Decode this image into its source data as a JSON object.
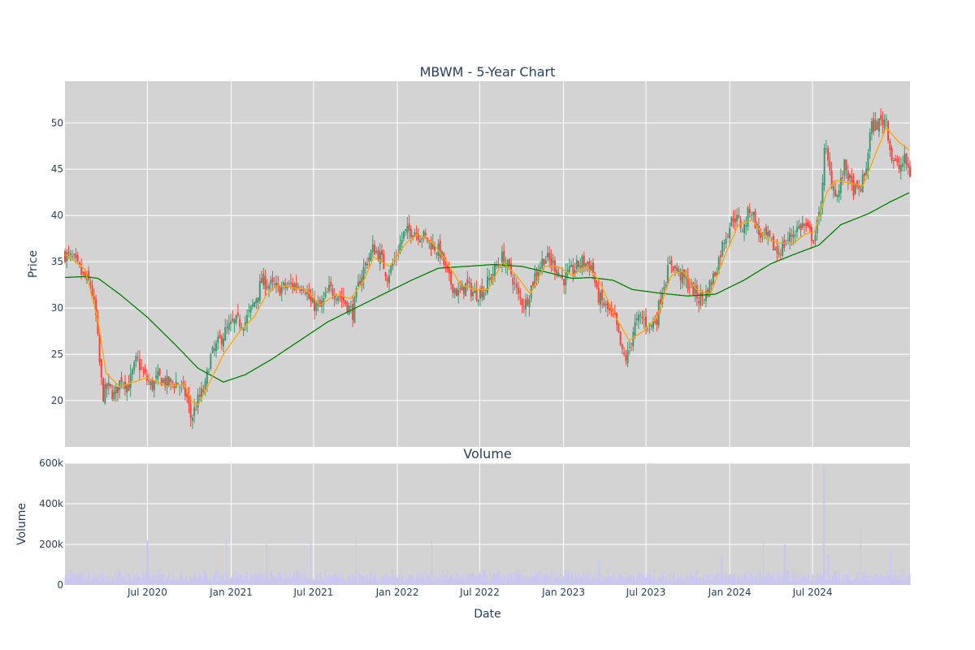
{
  "chart_data": [
    {
      "type": "candlestick",
      "title": "MBWM - 5-Year Chart",
      "ylabel": "Price",
      "ylim": [
        15,
        54.5
      ],
      "y_ticks": [
        20,
        25,
        30,
        35,
        40,
        45,
        50
      ],
      "x_range": [
        "2020-01-02",
        "2025-01-31"
      ],
      "grid": true,
      "colors": {
        "up": "#3d9970",
        "down": "#ff4136",
        "ma_short": "#ffa500",
        "ma_long": "#008000",
        "plot_bg": "#d3d3d3"
      },
      "close_keypoints": [
        [
          "2020-01-02",
          35.8
        ],
        [
          "2020-01-20",
          35.2
        ],
        [
          "2020-02-10",
          33.5
        ],
        [
          "2020-02-28",
          32.5
        ],
        [
          "2020-03-10",
          29.0
        ],
        [
          "2020-03-18",
          24.0
        ],
        [
          "2020-03-25",
          20.5
        ],
        [
          "2020-04-05",
          21.5
        ],
        [
          "2020-04-20",
          20.5
        ],
        [
          "2020-05-05",
          22.5
        ],
        [
          "2020-05-20",
          21.5
        ],
        [
          "2020-06-08",
          24.5
        ],
        [
          "2020-06-20",
          23.0
        ],
        [
          "2020-07-10",
          21.5
        ],
        [
          "2020-07-25",
          22.5
        ],
        [
          "2020-08-15",
          21.8
        ],
        [
          "2020-09-05",
          22.0
        ],
        [
          "2020-09-25",
          20.5
        ],
        [
          "2020-10-05",
          18.0
        ],
        [
          "2020-10-20",
          20.0
        ],
        [
          "2020-11-05",
          21.5
        ],
        [
          "2020-11-15",
          24.5
        ],
        [
          "2020-12-01",
          26.0
        ],
        [
          "2020-12-20",
          27.5
        ],
        [
          "2021-01-10",
          28.5
        ],
        [
          "2021-02-01",
          28.5
        ],
        [
          "2021-02-20",
          30.5
        ],
        [
          "2021-03-10",
          33.0
        ],
        [
          "2021-03-25",
          32.5
        ],
        [
          "2021-04-15",
          32.0
        ],
        [
          "2021-05-15",
          32.5
        ],
        [
          "2021-06-10",
          32.5
        ],
        [
          "2021-06-25",
          30.5
        ],
        [
          "2021-07-15",
          30.0
        ],
        [
          "2021-08-05",
          32.0
        ],
        [
          "2021-08-25",
          31.5
        ],
        [
          "2021-09-10",
          30.5
        ],
        [
          "2021-09-25",
          29.5
        ],
        [
          "2021-10-10",
          33.0
        ],
        [
          "2021-10-25",
          35.0
        ],
        [
          "2021-11-10",
          36.5
        ],
        [
          "2021-11-25",
          35.5
        ],
        [
          "2021-12-10",
          33.5
        ],
        [
          "2021-12-25",
          35.0
        ],
        [
          "2022-01-15",
          38.0
        ],
        [
          "2022-02-05",
          38.5
        ],
        [
          "2022-03-05",
          37.5
        ],
        [
          "2022-04-05",
          36.0
        ],
        [
          "2022-04-25",
          33.0
        ],
        [
          "2022-05-15",
          31.5
        ],
        [
          "2022-06-01",
          32.5
        ],
        [
          "2022-06-20",
          31.5
        ],
        [
          "2022-07-10",
          32.0
        ],
        [
          "2022-08-01",
          34.0
        ],
        [
          "2022-08-20",
          35.5
        ],
        [
          "2022-09-10",
          33.5
        ],
        [
          "2022-09-25",
          31.0
        ],
        [
          "2022-10-10",
          30.5
        ],
        [
          "2022-10-30",
          33.5
        ],
        [
          "2022-11-20",
          35.5
        ],
        [
          "2022-12-15",
          34.5
        ],
        [
          "2022-12-30",
          33.0
        ],
        [
          "2023-01-20",
          34.0
        ],
        [
          "2023-02-10",
          35.0
        ],
        [
          "2023-03-05",
          34.5
        ],
        [
          "2023-03-15",
          31.5
        ],
        [
          "2023-04-05",
          30.0
        ],
        [
          "2023-04-25",
          28.5
        ],
        [
          "2023-05-10",
          25.0
        ],
        [
          "2023-05-20",
          24.5
        ],
        [
          "2023-06-05",
          28.0
        ],
        [
          "2023-06-20",
          29.0
        ],
        [
          "2023-07-10",
          28.0
        ],
        [
          "2023-07-25",
          29.0
        ],
        [
          "2023-08-05",
          32.0
        ],
        [
          "2023-08-25",
          35.0
        ],
        [
          "2023-09-15",
          33.5
        ],
        [
          "2023-10-05",
          32.5
        ],
        [
          "2023-10-25",
          31.0
        ],
        [
          "2023-11-10",
          31.5
        ],
        [
          "2023-12-01",
          34.0
        ],
        [
          "2023-12-20",
          37.5
        ],
        [
          "2024-01-10",
          40.0
        ],
        [
          "2024-02-01",
          38.5
        ],
        [
          "2024-02-15",
          41.0
        ],
        [
          "2024-03-05",
          38.0
        ],
        [
          "2024-03-25",
          37.5
        ],
        [
          "2024-04-15",
          36.0
        ],
        [
          "2024-05-10",
          37.5
        ],
        [
          "2024-05-25",
          38.5
        ],
        [
          "2024-06-10",
          39.0
        ],
        [
          "2024-06-25",
          38.0
        ],
        [
          "2024-07-05",
          37.5
        ],
        [
          "2024-07-18",
          40.5
        ],
        [
          "2024-07-28",
          47.5
        ],
        [
          "2024-08-10",
          44.0
        ],
        [
          "2024-08-25",
          42.0
        ],
        [
          "2024-09-10",
          45.5
        ],
        [
          "2024-09-25",
          43.0
        ],
        [
          "2024-10-10",
          42.5
        ],
        [
          "2024-10-25",
          44.5
        ],
        [
          "2024-11-06",
          49.5
        ],
        [
          "2024-11-25",
          50.0
        ],
        [
          "2024-12-10",
          50.5
        ],
        [
          "2024-12-20",
          46.5
        ],
        [
          "2025-01-05",
          45.0
        ],
        [
          "2025-01-20",
          46.0
        ],
        [
          "2025-01-31",
          44.5
        ]
      ],
      "ma_short_keypoints": [
        [
          "2020-01-02",
          35.8
        ],
        [
          "2020-02-15",
          34.2
        ],
        [
          "2020-03-15",
          28.5
        ],
        [
          "2020-04-01",
          23.0
        ],
        [
          "2020-05-01",
          21.5
        ],
        [
          "2020-06-01",
          22.0
        ],
        [
          "2020-07-01",
          22.5
        ],
        [
          "2020-08-15",
          21.5
        ],
        [
          "2020-09-20",
          21.8
        ],
        [
          "2020-10-05",
          20.0
        ],
        [
          "2020-10-20",
          19.5
        ],
        [
          "2020-11-15",
          22.0
        ],
        [
          "2020-12-15",
          25.0
        ],
        [
          "2021-01-20",
          27.5
        ],
        [
          "2021-02-20",
          29.0
        ],
        [
          "2021-03-20",
          31.5
        ],
        [
          "2021-04-15",
          32.5
        ],
        [
          "2021-05-15",
          32.2
        ],
        [
          "2021-06-15",
          32.0
        ],
        [
          "2021-07-15",
          30.3
        ],
        [
          "2021-08-20",
          31.5
        ],
        [
          "2021-09-20",
          31.0
        ],
        [
          "2021-10-20",
          33.0
        ],
        [
          "2021-11-10",
          35.5
        ],
        [
          "2021-12-15",
          34.5
        ],
        [
          "2022-01-20",
          37.0
        ],
        [
          "2022-02-15",
          38.0
        ],
        [
          "2022-03-20",
          37.0
        ],
        [
          "2022-04-20",
          35.0
        ],
        [
          "2022-05-20",
          32.5
        ],
        [
          "2022-06-20",
          32.0
        ],
        [
          "2022-07-20",
          32.0
        ],
        [
          "2022-08-20",
          35.0
        ],
        [
          "2022-09-20",
          33.5
        ],
        [
          "2022-10-20",
          31.5
        ],
        [
          "2022-11-20",
          34.5
        ],
        [
          "2022-12-20",
          34.5
        ],
        [
          "2023-01-20",
          33.5
        ],
        [
          "2023-02-20",
          34.5
        ],
        [
          "2023-03-20",
          33.0
        ],
        [
          "2023-04-20",
          29.5
        ],
        [
          "2023-05-25",
          26.5
        ],
        [
          "2023-06-25",
          27.5
        ],
        [
          "2023-07-25",
          29.0
        ],
        [
          "2023-08-25",
          33.5
        ],
        [
          "2023-09-20",
          34.0
        ],
        [
          "2023-10-20",
          32.0
        ],
        [
          "2023-11-20",
          31.5
        ],
        [
          "2023-12-20",
          35.5
        ],
        [
          "2024-01-20",
          39.0
        ],
        [
          "2024-02-20",
          39.5
        ],
        [
          "2024-03-20",
          37.5
        ],
        [
          "2024-04-20",
          37.0
        ],
        [
          "2024-05-20",
          37.0
        ],
        [
          "2024-06-15",
          38.0
        ],
        [
          "2024-07-05",
          38.2
        ],
        [
          "2024-08-01",
          42.5
        ],
        [
          "2024-08-20",
          43.8
        ],
        [
          "2024-09-20",
          43.5
        ],
        [
          "2024-10-20",
          43.2
        ],
        [
          "2024-11-15",
          46.5
        ],
        [
          "2024-12-10",
          49.5
        ],
        [
          "2025-01-05",
          48.0
        ],
        [
          "2025-01-31",
          47.0
        ]
      ],
      "ma_long_keypoints": [
        [
          "2020-01-02",
          33.3
        ],
        [
          "2020-02-15",
          33.4
        ],
        [
          "2020-03-15",
          33.2
        ],
        [
          "2020-05-01",
          31.5
        ],
        [
          "2020-07-01",
          29.0
        ],
        [
          "2020-09-01",
          26.0
        ],
        [
          "2020-10-20",
          23.5
        ],
        [
          "2020-12-15",
          22.0
        ],
        [
          "2021-02-01",
          22.8
        ],
        [
          "2021-04-01",
          24.5
        ],
        [
          "2021-06-01",
          26.5
        ],
        [
          "2021-08-01",
          28.5
        ],
        [
          "2021-10-01",
          30.0
        ],
        [
          "2021-12-01",
          31.5
        ],
        [
          "2022-02-01",
          33.0
        ],
        [
          "2022-04-01",
          34.3
        ],
        [
          "2022-06-01",
          34.5
        ],
        [
          "2022-08-01",
          34.7
        ],
        [
          "2022-10-01",
          34.5
        ],
        [
          "2022-12-01",
          33.8
        ],
        [
          "2023-01-20",
          33.2
        ],
        [
          "2023-03-01",
          33.3
        ],
        [
          "2023-04-20",
          33.0
        ],
        [
          "2023-06-01",
          32.0
        ],
        [
          "2023-08-01",
          31.6
        ],
        [
          "2023-10-01",
          31.3
        ],
        [
          "2023-12-01",
          31.5
        ],
        [
          "2024-02-01",
          33.0
        ],
        [
          "2024-04-01",
          34.8
        ],
        [
          "2024-06-01",
          36.0
        ],
        [
          "2024-07-15",
          36.8
        ],
        [
          "2024-09-01",
          39.0
        ],
        [
          "2024-11-01",
          40.2
        ],
        [
          "2024-12-20",
          41.5
        ],
        [
          "2025-01-31",
          42.5
        ]
      ]
    },
    {
      "type": "bar",
      "title": "Volume",
      "xlabel": "Date",
      "ylabel": "Volume",
      "ylim": [
        0,
        600000
      ],
      "y_ticks": [
        0,
        200000,
        400000,
        600000
      ],
      "y_tick_labels": [
        "0",
        "200k",
        "400k",
        "600k"
      ],
      "x_ticks": [
        "2020-07-01",
        "2021-01-01",
        "2021-07-01",
        "2022-01-01",
        "2022-07-01",
        "2023-01-01",
        "2023-07-01",
        "2024-01-01",
        "2024-07-01"
      ],
      "x_tick_labels": [
        "Jul 2020",
        "Jan 2021",
        "Jul 2021",
        "Jan 2022",
        "Jul 2022",
        "Jan 2023",
        "Jul 2023",
        "Jan 2024",
        "Jul 2024"
      ],
      "bar_color": "#c8c8f0",
      "baseline_volume": 45000,
      "volume_spikes": [
        [
          "2020-07-01",
          220000
        ],
        [
          "2020-12-21",
          225000
        ],
        [
          "2021-03-19",
          205000
        ],
        [
          "2021-06-25",
          215000
        ],
        [
          "2021-10-01",
          250000
        ],
        [
          "2022-03-18",
          215000
        ],
        [
          "2023-03-20",
          130000
        ],
        [
          "2023-12-15",
          140000
        ],
        [
          "2024-03-15",
          225000
        ],
        [
          "2024-05-01",
          200000
        ],
        [
          "2024-07-26",
          585000
        ],
        [
          "2024-08-05",
          150000
        ],
        [
          "2024-10-15",
          290000
        ],
        [
          "2024-12-20",
          165000
        ]
      ]
    }
  ]
}
